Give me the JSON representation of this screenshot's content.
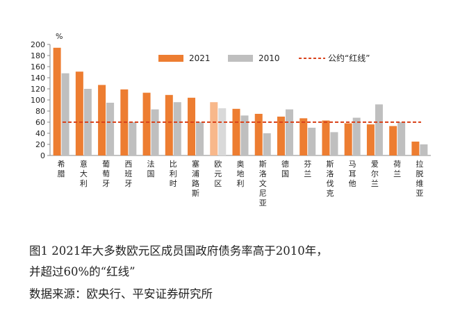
{
  "chart_data": {
    "type": "bar",
    "unit_label": "%",
    "categories": [
      "希腊",
      "意大利",
      "葡萄牙",
      "西班牙",
      "法国",
      "比利时",
      "塞浦路斯",
      "欧元区",
      "奥地利",
      "斯洛文尼亚",
      "德国",
      "芬兰",
      "斯洛伐克",
      "马耳他",
      "爱尔兰",
      "荷兰",
      "拉脱维亚"
    ],
    "series": [
      {
        "name": "2021",
        "color": "#ED7D31",
        "values": [
          194,
          151,
          127,
          119,
          113,
          109,
          104,
          96,
          84,
          75,
          70,
          67,
          63,
          58,
          56,
          53,
          25
        ]
      },
      {
        "name": "2010",
        "color": "#BFBFBF",
        "values": [
          148,
          120,
          95,
          60,
          83,
          96,
          60,
          85,
          72,
          40,
          83,
          50,
          42,
          68,
          92,
          60,
          20
        ]
      }
    ],
    "highlight": {
      "category": "欧元区",
      "color_2021": "#F8B88B",
      "color_2010": "#D9D9D9"
    },
    "reference_line": {
      "name": "公约“红线”",
      "value": 60,
      "color": "#D9421B"
    },
    "ylim": [
      0,
      200
    ],
    "yticks": [
      0,
      20,
      40,
      60,
      80,
      100,
      120,
      140,
      160,
      180,
      200
    ],
    "legend_placement": "top-right",
    "grid": false
  },
  "caption": {
    "line1": "图1  2021年大多数欧元区成员国政府债务率高于2010年，",
    "line2": "并超过60%的“红线”",
    "line3": "数据来源：欧央行、平安证券研究所"
  }
}
